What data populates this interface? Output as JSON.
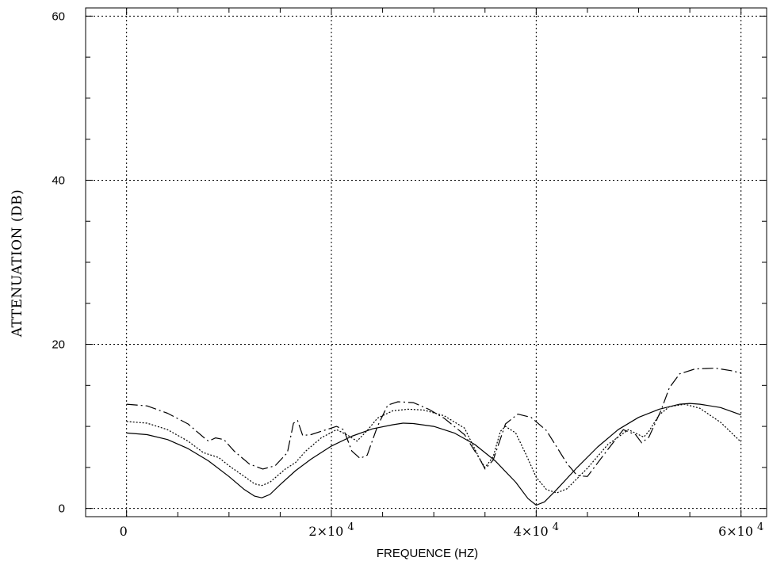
{
  "chart_data": {
    "type": "line",
    "title": "",
    "xlabel": "FREQUENCE (HZ)",
    "ylabel": "ATTENUATION (DB)",
    "xlim": [
      -4000,
      62500
    ],
    "ylim": [
      -1,
      61
    ],
    "grid": true,
    "x_ticks": [
      {
        "value": 0,
        "label": "0",
        "mantissa": "",
        "exponent": ""
      },
      {
        "value": 20000,
        "label": "",
        "mantissa": "2×10",
        "exponent": "4"
      },
      {
        "value": 40000,
        "label": "",
        "mantissa": "4×10",
        "exponent": "4"
      },
      {
        "value": 60000,
        "label": "",
        "mantissa": "6×10",
        "exponent": "4"
      }
    ],
    "y_ticks": [
      {
        "value": 0,
        "label": "0"
      },
      {
        "value": 20,
        "label": "20"
      },
      {
        "value": 40,
        "label": "40"
      },
      {
        "value": 60,
        "label": "60"
      }
    ],
    "series": [
      {
        "style": "solid",
        "points": [
          [
            0,
            9.2
          ],
          [
            2000,
            9.0
          ],
          [
            4000,
            8.4
          ],
          [
            6000,
            7.3
          ],
          [
            8000,
            5.8
          ],
          [
            10000,
            3.9
          ],
          [
            11500,
            2.3
          ],
          [
            12500,
            1.5
          ],
          [
            13200,
            1.3
          ],
          [
            14000,
            1.7
          ],
          [
            15000,
            2.9
          ],
          [
            16500,
            4.6
          ],
          [
            18000,
            6.0
          ],
          [
            20000,
            7.6
          ],
          [
            22000,
            8.8
          ],
          [
            24000,
            9.7
          ],
          [
            26000,
            10.2
          ],
          [
            27000,
            10.4
          ],
          [
            28000,
            10.35
          ],
          [
            30000,
            10.0
          ],
          [
            32000,
            9.2
          ],
          [
            34000,
            7.8
          ],
          [
            36000,
            5.8
          ],
          [
            38000,
            3.2
          ],
          [
            39200,
            1.2
          ],
          [
            40000,
            0.4
          ],
          [
            40800,
            0.8
          ],
          [
            42000,
            2.3
          ],
          [
            44000,
            5.0
          ],
          [
            46000,
            7.5
          ],
          [
            48000,
            9.6
          ],
          [
            50000,
            11.1
          ],
          [
            52000,
            12.1
          ],
          [
            54000,
            12.7
          ],
          [
            55000,
            12.8
          ],
          [
            56000,
            12.7
          ],
          [
            58000,
            12.3
          ],
          [
            60000,
            11.4
          ]
        ]
      },
      {
        "style": "dotted",
        "points": [
          [
            0,
            10.6
          ],
          [
            2000,
            10.4
          ],
          [
            4000,
            9.6
          ],
          [
            6000,
            8.2
          ],
          [
            7500,
            6.8
          ],
          [
            8000,
            6.6
          ],
          [
            9000,
            6.2
          ],
          [
            10000,
            5.2
          ],
          [
            11500,
            3.9
          ],
          [
            12500,
            3.0
          ],
          [
            13200,
            2.8
          ],
          [
            14000,
            3.2
          ],
          [
            15500,
            4.8
          ],
          [
            16500,
            5.6
          ],
          [
            17500,
            7.0
          ],
          [
            19000,
            8.6
          ],
          [
            20500,
            9.6
          ],
          [
            21500,
            9.0
          ],
          [
            22500,
            8.2
          ],
          [
            23500,
            9.5
          ],
          [
            24500,
            11.0
          ],
          [
            26000,
            11.9
          ],
          [
            27500,
            12.1
          ],
          [
            29000,
            12.0
          ],
          [
            31000,
            11.3
          ],
          [
            33000,
            9.8
          ],
          [
            34500,
            6.0
          ],
          [
            35000,
            5.0
          ],
          [
            35800,
            6.3
          ],
          [
            36500,
            9.4
          ],
          [
            37000,
            10.0
          ],
          [
            38000,
            9.2
          ],
          [
            39000,
            6.6
          ],
          [
            40000,
            3.8
          ],
          [
            41000,
            2.3
          ],
          [
            42000,
            1.9
          ],
          [
            43000,
            2.4
          ],
          [
            45000,
            4.9
          ],
          [
            47000,
            7.8
          ],
          [
            49000,
            9.6
          ],
          [
            50000,
            9.0
          ],
          [
            50500,
            8.7
          ],
          [
            51000,
            9.4
          ],
          [
            52000,
            11.4
          ],
          [
            53000,
            12.4
          ],
          [
            54500,
            12.7
          ],
          [
            56000,
            12.2
          ],
          [
            58000,
            10.5
          ],
          [
            60000,
            8.1
          ]
        ]
      },
      {
        "style": "dash-dot",
        "points": [
          [
            0,
            12.7
          ],
          [
            2000,
            12.5
          ],
          [
            4000,
            11.6
          ],
          [
            6000,
            10.3
          ],
          [
            7500,
            8.7
          ],
          [
            8000,
            8.2
          ],
          [
            8700,
            8.6
          ],
          [
            9500,
            8.4
          ],
          [
            10500,
            7.0
          ],
          [
            12000,
            5.4
          ],
          [
            13300,
            4.8
          ],
          [
            14500,
            5.2
          ],
          [
            15700,
            6.8
          ],
          [
            16300,
            10.4
          ],
          [
            16700,
            10.7
          ],
          [
            17200,
            8.9
          ],
          [
            18000,
            9.0
          ],
          [
            19000,
            9.4
          ],
          [
            20500,
            10.0
          ],
          [
            21200,
            9.6
          ],
          [
            22000,
            7.0
          ],
          [
            22800,
            6.1
          ],
          [
            23500,
            6.5
          ],
          [
            24500,
            10.0
          ],
          [
            25500,
            12.6
          ],
          [
            26500,
            13.0
          ],
          [
            28000,
            12.9
          ],
          [
            29500,
            12.1
          ],
          [
            31000,
            11.0
          ],
          [
            33000,
            9.0
          ],
          [
            34500,
            6.0
          ],
          [
            35000,
            4.8
          ],
          [
            35800,
            5.9
          ],
          [
            37000,
            10.3
          ],
          [
            38200,
            11.5
          ],
          [
            39500,
            11.1
          ],
          [
            41000,
            9.5
          ],
          [
            43000,
            5.5
          ],
          [
            44000,
            4.0
          ],
          [
            45000,
            3.9
          ],
          [
            47000,
            7.2
          ],
          [
            48500,
            9.6
          ],
          [
            49700,
            9.0
          ],
          [
            50300,
            8.0
          ],
          [
            51000,
            8.7
          ],
          [
            52200,
            12.0
          ],
          [
            53000,
            14.7
          ],
          [
            54000,
            16.4
          ],
          [
            55500,
            17.0
          ],
          [
            57500,
            17.1
          ],
          [
            59000,
            16.8
          ],
          [
            60000,
            16.5
          ]
        ]
      }
    ]
  }
}
